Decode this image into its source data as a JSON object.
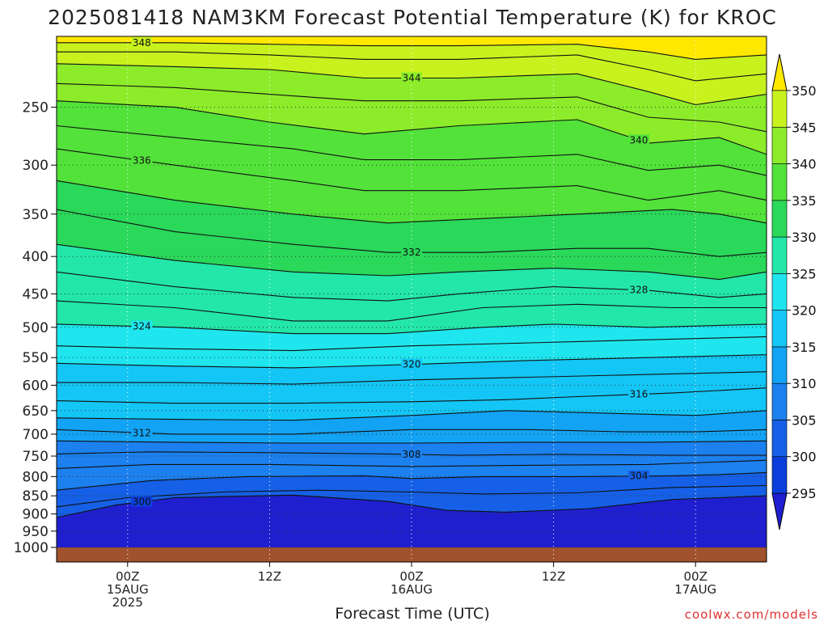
{
  "chart_data": {
    "type": "heatmap",
    "title": "2025081418 NAM3KM Forecast Potential Temperature (K) for KROC",
    "xlabel": "Forecast Time (UTC)",
    "ylabel": "",
    "x_ticks": [
      {
        "hour": 6,
        "lines": [
          "00Z",
          "15AUG",
          "2025"
        ]
      },
      {
        "hour": 18,
        "lines": [
          "12Z",
          "",
          ""
        ]
      },
      {
        "hour": 30,
        "lines": [
          "00Z",
          "16AUG",
          ""
        ]
      },
      {
        "hour": 42,
        "lines": [
          "12Z",
          "",
          ""
        ]
      },
      {
        "hour": 54,
        "lines": [
          "00Z",
          "17AUG",
          ""
        ]
      }
    ],
    "xlim": [
      0,
      60
    ],
    "y_ticks": [
      250,
      300,
      350,
      400,
      450,
      500,
      550,
      600,
      650,
      700,
      750,
      800,
      850,
      900,
      950,
      1000
    ],
    "ylim": [
      1000,
      200
    ],
    "y_scale": "log-pressure",
    "colorbar": {
      "labels": [
        295,
        300,
        305,
        310,
        315,
        320,
        325,
        330,
        335,
        340,
        345,
        350
      ],
      "levels": [
        290,
        295,
        300,
        305,
        310,
        315,
        320,
        325,
        330,
        335,
        340,
        345,
        350,
        355
      ],
      "colors": [
        "#1f1fd0",
        "#0b3fdc",
        "#1560e6",
        "#1c80ee",
        "#13a3f4",
        "#14c6f5",
        "#1fe6ee",
        "#22e7a8",
        "#2ad85a",
        "#52e23a",
        "#8cec2a",
        "#c8f21e",
        "#f4f40e",
        "#ffe800"
      ]
    },
    "contour_lines": [
      {
        "value": 300,
        "label": "300",
        "points": [
          [
            0,
            910
          ],
          [
            5,
            875
          ],
          [
            10,
            855
          ],
          [
            20,
            848
          ],
          [
            28,
            865
          ],
          [
            33,
            890
          ],
          [
            38,
            895
          ],
          [
            45,
            885
          ],
          [
            52,
            860
          ],
          [
            56,
            855
          ],
          [
            60,
            850
          ]
        ]
      },
      {
        "value": 302,
        "label": "",
        "points": [
          [
            0,
            880
          ],
          [
            6,
            855
          ],
          [
            14,
            840
          ],
          [
            22,
            835
          ],
          [
            30,
            840
          ],
          [
            36,
            845
          ],
          [
            44,
            842
          ],
          [
            52,
            828
          ],
          [
            60,
            823
          ]
        ]
      },
      {
        "value": 304,
        "label": "304",
        "points": [
          [
            0,
            835
          ],
          [
            8,
            810
          ],
          [
            16,
            800
          ],
          [
            26,
            798
          ],
          [
            30,
            805
          ],
          [
            36,
            800
          ],
          [
            44,
            800
          ],
          [
            52,
            798
          ],
          [
            56,
            795
          ],
          [
            60,
            790
          ]
        ]
      },
      {
        "value": 306,
        "label": "",
        "points": [
          [
            0,
            780
          ],
          [
            8,
            770
          ],
          [
            18,
            770
          ],
          [
            30,
            775
          ],
          [
            40,
            772
          ],
          [
            50,
            770
          ],
          [
            60,
            760
          ]
        ]
      },
      {
        "value": 308,
        "label": "308",
        "points": [
          [
            0,
            745
          ],
          [
            8,
            740
          ],
          [
            18,
            742
          ],
          [
            28,
            745
          ],
          [
            34,
            748
          ],
          [
            42,
            746
          ],
          [
            52,
            748
          ],
          [
            60,
            748
          ]
        ]
      },
      {
        "value": 310,
        "label": "",
        "points": [
          [
            0,
            715
          ],
          [
            10,
            718
          ],
          [
            20,
            720
          ],
          [
            30,
            720
          ],
          [
            40,
            718
          ],
          [
            50,
            718
          ],
          [
            60,
            715
          ]
        ]
      },
      {
        "value": 312,
        "label": "312",
        "points": [
          [
            0,
            690
          ],
          [
            10,
            700
          ],
          [
            20,
            700
          ],
          [
            30,
            690
          ],
          [
            40,
            690
          ],
          [
            48,
            695
          ],
          [
            54,
            695
          ],
          [
            60,
            690
          ]
        ]
      },
      {
        "value": 314,
        "label": "",
        "points": [
          [
            0,
            665
          ],
          [
            10,
            668
          ],
          [
            20,
            670
          ],
          [
            30,
            660
          ],
          [
            38,
            650
          ],
          [
            46,
            655
          ],
          [
            54,
            660
          ],
          [
            60,
            650
          ]
        ]
      },
      {
        "value": 316,
        "label": "316",
        "points": [
          [
            0,
            630
          ],
          [
            10,
            635
          ],
          [
            20,
            635
          ],
          [
            30,
            632
          ],
          [
            38,
            628
          ],
          [
            44,
            622
          ],
          [
            52,
            615
          ],
          [
            60,
            605
          ]
        ]
      },
      {
        "value": 318,
        "label": "",
        "points": [
          [
            0,
            595
          ],
          [
            10,
            595
          ],
          [
            20,
            598
          ],
          [
            30,
            590
          ],
          [
            40,
            585
          ],
          [
            50,
            580
          ],
          [
            60,
            575
          ]
        ]
      },
      {
        "value": 320,
        "label": "320",
        "points": [
          [
            0,
            560
          ],
          [
            10,
            565
          ],
          [
            20,
            568
          ],
          [
            30,
            562
          ],
          [
            40,
            555
          ],
          [
            50,
            550
          ],
          [
            60,
            545
          ]
        ]
      },
      {
        "value": 322,
        "label": "",
        "points": [
          [
            0,
            530
          ],
          [
            10,
            535
          ],
          [
            20,
            538
          ],
          [
            30,
            530
          ],
          [
            40,
            525
          ],
          [
            50,
            520
          ],
          [
            60,
            515
          ]
        ]
      },
      {
        "value": 324,
        "label": "324",
        "points": [
          [
            0,
            495
          ],
          [
            10,
            500
          ],
          [
            20,
            510
          ],
          [
            28,
            510
          ],
          [
            36,
            500
          ],
          [
            42,
            495
          ],
          [
            50,
            500
          ],
          [
            60,
            495
          ]
        ]
      },
      {
        "value": 326,
        "label": "",
        "points": [
          [
            0,
            460
          ],
          [
            10,
            470
          ],
          [
            20,
            490
          ],
          [
            28,
            490
          ],
          [
            36,
            470
          ],
          [
            44,
            465
          ],
          [
            52,
            470
          ],
          [
            60,
            470
          ]
        ]
      },
      {
        "value": 328,
        "label": "328",
        "points": [
          [
            0,
            420
          ],
          [
            10,
            440
          ],
          [
            20,
            455
          ],
          [
            28,
            460
          ],
          [
            34,
            450
          ],
          [
            42,
            440
          ],
          [
            50,
            445
          ],
          [
            56,
            455
          ],
          [
            60,
            450
          ]
        ]
      },
      {
        "value": 330,
        "label": "",
        "points": [
          [
            0,
            385
          ],
          [
            10,
            405
          ],
          [
            20,
            420
          ],
          [
            28,
            425
          ],
          [
            34,
            420
          ],
          [
            42,
            415
          ],
          [
            50,
            420
          ],
          [
            56,
            430
          ],
          [
            60,
            420
          ]
        ]
      },
      {
        "value": 332,
        "label": "332",
        "points": [
          [
            0,
            345
          ],
          [
            10,
            370
          ],
          [
            20,
            385
          ],
          [
            28,
            395
          ],
          [
            36,
            395
          ],
          [
            44,
            390
          ],
          [
            50,
            390
          ],
          [
            56,
            400
          ],
          [
            60,
            395
          ]
        ]
      },
      {
        "value": 334,
        "label": "",
        "points": [
          [
            0,
            315
          ],
          [
            10,
            335
          ],
          [
            20,
            350
          ],
          [
            28,
            360
          ],
          [
            36,
            355
          ],
          [
            44,
            350
          ],
          [
            52,
            345
          ],
          [
            56,
            350
          ],
          [
            60,
            360
          ]
        ]
      },
      {
        "value": 336,
        "label": "336",
        "points": [
          [
            0,
            285
          ],
          [
            10,
            300
          ],
          [
            20,
            315
          ],
          [
            26,
            325
          ],
          [
            34,
            325
          ],
          [
            44,
            320
          ],
          [
            50,
            335
          ],
          [
            56,
            325
          ],
          [
            60,
            335
          ]
        ]
      },
      {
        "value": 338,
        "label": "",
        "points": [
          [
            0,
            265
          ],
          [
            10,
            275
          ],
          [
            20,
            285
          ],
          [
            26,
            295
          ],
          [
            34,
            295
          ],
          [
            44,
            290
          ],
          [
            50,
            305
          ],
          [
            56,
            300
          ],
          [
            60,
            310
          ]
        ]
      },
      {
        "value": 340,
        "label": "340",
        "points": [
          [
            0,
            245
          ],
          [
            10,
            250
          ],
          [
            18,
            262
          ],
          [
            26,
            272
          ],
          [
            34,
            265
          ],
          [
            44,
            260
          ],
          [
            50,
            280
          ],
          [
            56,
            275
          ],
          [
            60,
            290
          ]
        ]
      },
      {
        "value": 342,
        "label": "",
        "points": [
          [
            0,
            232
          ],
          [
            10,
            235
          ],
          [
            18,
            240
          ],
          [
            26,
            245
          ],
          [
            34,
            245
          ],
          [
            44,
            242
          ],
          [
            50,
            258
          ],
          [
            56,
            262
          ],
          [
            60,
            270
          ]
        ]
      },
      {
        "value": 344,
        "label": "344",
        "points": [
          [
            0,
            218
          ],
          [
            10,
            220
          ],
          [
            18,
            222
          ],
          [
            26,
            228
          ],
          [
            34,
            228
          ],
          [
            44,
            225
          ],
          [
            50,
            238
          ],
          [
            54,
            248
          ],
          [
            60,
            240
          ]
        ]
      },
      {
        "value": 346,
        "label": "",
        "points": [
          [
            0,
            210
          ],
          [
            10,
            210
          ],
          [
            18,
            212
          ],
          [
            26,
            215
          ],
          [
            34,
            215
          ],
          [
            44,
            212
          ],
          [
            50,
            222
          ],
          [
            54,
            230
          ],
          [
            60,
            225
          ]
        ]
      },
      {
        "value": 348,
        "label": "348",
        "points": [
          [
            0,
            204
          ],
          [
            10,
            204
          ],
          [
            18,
            205
          ],
          [
            26,
            206
          ],
          [
            34,
            206
          ],
          [
            44,
            205
          ],
          [
            50,
            210
          ],
          [
            54,
            215
          ],
          [
            60,
            212
          ]
        ]
      }
    ]
  },
  "credit": "coolwx.com/models"
}
